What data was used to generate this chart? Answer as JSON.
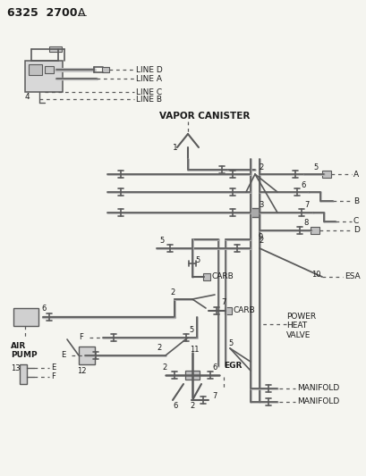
{
  "bg_color": "#f5f5f0",
  "line_color": "#5a5a5a",
  "text_color": "#1a1a1a",
  "title": "6325  2700",
  "title_A": "A",
  "labels": {
    "vapor_canister": "VAPOR CANISTER",
    "line_d": "LINE D",
    "line_a": "LINE A",
    "line_c": "LINE C",
    "line_b": "LINE B",
    "carb1": "CARB",
    "carb2": "CARB",
    "air_pump": "AIR\nPUMP",
    "egr": "EGR",
    "manifold1": "MANIFOLD",
    "manifold2": "MANIFOLD",
    "power_heat_valve": "POWER\nHEAT\nVALVE",
    "esa": "ESA",
    "A": "A",
    "B": "B",
    "C": "C",
    "D": "D"
  }
}
